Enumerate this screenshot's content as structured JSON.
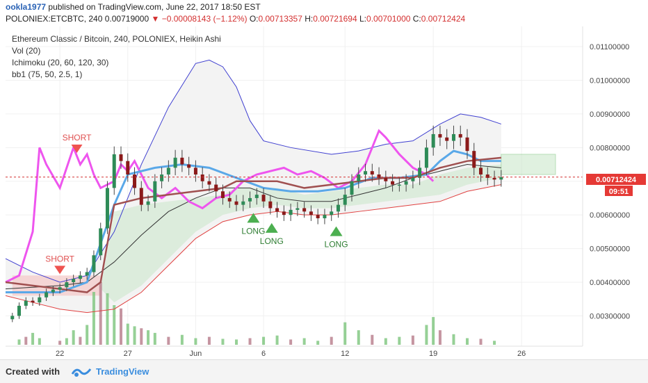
{
  "header": {
    "username": "ookla1977",
    "published_text": "published on TradingView.com, June 22, 2017 18:50 EST",
    "symbol": "POLONIEX:ETCBTC, 240",
    "last": "0.00719000",
    "change": "−0.00008143 (−1.12%)",
    "open_label": "O:",
    "open": "0.00713357",
    "high_label": "H:",
    "high": "0.00721694",
    "low_label": "L:",
    "low": "0.00701000",
    "close_label": "C:",
    "close": "0.00712424"
  },
  "legend": [
    "Ethereum Classic / Bitcoin, 240, POLONIEX, Heikin Ashi",
    "Vol (20)",
    "Ichimoku (20, 60, 120, 30)",
    "bb1 (75, 50, 2.5, 1)"
  ],
  "price_tag": {
    "value": "0.00712424",
    "countdown": "09:51"
  },
  "footer": {
    "created_with": "Created with",
    "brand": "TradingView"
  },
  "colors": {
    "up": "#2e8b57",
    "down": "#8b1a1a",
    "bb_upper": "#3f3fd0",
    "bb_lower": "#e04040",
    "magenta": "#ee55ee",
    "cyan": "#5aa8e8",
    "brown": "#a05050",
    "cloud_green": "#c8e6c8",
    "cloud_red": "#f3c8c8",
    "price_line": "#d32f2f",
    "volume_up": "#7cc47c",
    "volume_down": "#b77a8a"
  },
  "chart_data": {
    "type": "candlestick",
    "style": "Heikin Ashi",
    "x_tick_labels": [
      "22",
      "27",
      "Jun",
      "6",
      "12",
      "19",
      "26"
    ],
    "y_tick_labels": [
      "0.01100000",
      "0.01000000",
      "0.00900000",
      "0.00800000",
      "0.00700000",
      "0.00600000",
      "0.00500000",
      "0.00400000",
      "0.00300000"
    ],
    "y_ticks": [
      0.011,
      0.01,
      0.009,
      0.008,
      0.007,
      0.006,
      0.005,
      0.004,
      0.003
    ],
    "ylim": [
      0.0021,
      0.0116
    ],
    "last_price": 0.00712424,
    "annotations": [
      {
        "text": "SHORT",
        "type": "short",
        "price": 0.0078,
        "x_label_ref": "22",
        "offset": 2.5
      },
      {
        "text": "SHORT",
        "type": "short",
        "price": 0.0042,
        "x_label_ref": "22",
        "offset": 0.0
      },
      {
        "text": "LONG",
        "type": "long",
        "price": 0.0061,
        "x_label_ref": "6",
        "offset": -1.5
      },
      {
        "text": "LONG",
        "type": "long",
        "price": 0.0058,
        "x_label_ref": "6",
        "offset": 1.2
      },
      {
        "text": "LONG",
        "type": "long",
        "price": 0.0057,
        "x_label_ref": "12",
        "offset": -1.3
      }
    ],
    "price_path": [
      [
        0,
        0.0029
      ],
      [
        1,
        0.003
      ],
      [
        2,
        0.0033
      ],
      [
        3,
        0.00345
      ],
      [
        4,
        0.0034
      ],
      [
        5,
        0.00355
      ],
      [
        6,
        0.0037
      ],
      [
        7,
        0.00378
      ],
      [
        8,
        0.00385
      ],
      [
        9,
        0.004
      ],
      [
        10,
        0.0041
      ],
      [
        11,
        0.0042
      ],
      [
        12,
        0.0043
      ],
      [
        13,
        0.0048
      ],
      [
        14,
        0.0056
      ],
      [
        15,
        0.0068
      ],
      [
        16,
        0.0078
      ],
      [
        17,
        0.0076
      ],
      [
        18,
        0.0072
      ],
      [
        19,
        0.0068
      ],
      [
        20,
        0.0063
      ],
      [
        21,
        0.0064
      ],
      [
        22,
        0.007
      ],
      [
        23,
        0.0072
      ],
      [
        24,
        0.0074
      ],
      [
        25,
        0.0077
      ],
      [
        26,
        0.0075
      ],
      [
        27,
        0.0074
      ],
      [
        28,
        0.0072
      ],
      [
        29,
        0.007
      ],
      [
        30,
        0.0069
      ],
      [
        31,
        0.0067
      ],
      [
        32,
        0.0065
      ],
      [
        33,
        0.0064
      ],
      [
        34,
        0.0063
      ],
      [
        35,
        0.0064
      ],
      [
        36,
        0.0065
      ],
      [
        37,
        0.0066
      ],
      [
        38,
        0.0064
      ],
      [
        39,
        0.0062
      ],
      [
        40,
        0.0061
      ],
      [
        41,
        0.006
      ],
      [
        42,
        0.00615
      ],
      [
        43,
        0.0062
      ],
      [
        44,
        0.0061
      ],
      [
        45,
        0.006
      ],
      [
        46,
        0.0059
      ],
      [
        47,
        0.006
      ],
      [
        48,
        0.0061
      ],
      [
        49,
        0.0063
      ],
      [
        50,
        0.0066
      ],
      [
        51,
        0.007
      ],
      [
        52,
        0.0072
      ],
      [
        53,
        0.0073
      ],
      [
        54,
        0.0072
      ],
      [
        55,
        0.0071
      ],
      [
        56,
        0.007
      ],
      [
        57,
        0.0069
      ],
      [
        58,
        0.0069
      ],
      [
        59,
        0.007
      ],
      [
        60,
        0.0071
      ],
      [
        61,
        0.0074
      ],
      [
        62,
        0.008
      ],
      [
        63,
        0.0084
      ],
      [
        64,
        0.0083
      ],
      [
        65,
        0.0082
      ],
      [
        66,
        0.0084
      ],
      [
        67,
        0.0083
      ],
      [
        68,
        0.0079
      ],
      [
        69,
        0.0074
      ],
      [
        70,
        0.0072
      ],
      [
        71,
        0.0071
      ],
      [
        72,
        0.00705
      ],
      [
        73,
        0.00712
      ]
    ],
    "x_tick_positions": [
      8,
      18,
      28,
      38,
      50,
      63,
      76
    ],
    "series": [
      {
        "name": "bb upper",
        "values": [
          [
            0,
            0.0047
          ],
          [
            4,
            0.0043
          ],
          [
            8,
            0.004
          ],
          [
            12,
            0.0042
          ],
          [
            16,
            0.0055
          ],
          [
            20,
            0.0075
          ],
          [
            24,
            0.0092
          ],
          [
            28,
            0.0105
          ],
          [
            30,
            0.0106
          ],
          [
            32,
            0.0104
          ],
          [
            34,
            0.0098
          ],
          [
            36,
            0.0088
          ],
          [
            38,
            0.0082
          ],
          [
            42,
            0.008
          ],
          [
            48,
            0.0078
          ],
          [
            52,
            0.0079
          ],
          [
            56,
            0.0081
          ],
          [
            60,
            0.0082
          ],
          [
            64,
            0.0087
          ],
          [
            67,
            0.009
          ],
          [
            70,
            0.0089
          ],
          [
            73,
            0.0087
          ]
        ]
      },
      {
        "name": "bb lower",
        "values": [
          [
            0,
            0.0036
          ],
          [
            4,
            0.0034
          ],
          [
            8,
            0.0032
          ],
          [
            12,
            0.0031
          ],
          [
            16,
            0.0032
          ],
          [
            20,
            0.0037
          ],
          [
            24,
            0.0045
          ],
          [
            28,
            0.0053
          ],
          [
            32,
            0.0058
          ],
          [
            36,
            0.006
          ],
          [
            40,
            0.0061
          ],
          [
            44,
            0.006
          ],
          [
            48,
            0.006
          ],
          [
            52,
            0.0061
          ],
          [
            56,
            0.0062
          ],
          [
            60,
            0.0063
          ],
          [
            64,
            0.0064
          ],
          [
            68,
            0.0067
          ],
          [
            73,
            0.0069
          ]
        ]
      },
      {
        "name": "magenta",
        "values": [
          [
            0,
            0.004
          ],
          [
            2,
            0.0042
          ],
          [
            4,
            0.0055
          ],
          [
            5,
            0.008
          ],
          [
            6,
            0.0075
          ],
          [
            8,
            0.0068
          ],
          [
            10,
            0.008
          ],
          [
            11,
            0.0075
          ],
          [
            12,
            0.0078
          ],
          [
            13,
            0.0072
          ],
          [
            14,
            0.0068
          ],
          [
            16,
            0.007
          ],
          [
            17,
            0.0075
          ],
          [
            18,
            0.0073
          ],
          [
            19,
            0.0076
          ],
          [
            21,
            0.0068
          ],
          [
            23,
            0.0065
          ],
          [
            25,
            0.0068
          ],
          [
            27,
            0.0064
          ],
          [
            29,
            0.0062
          ],
          [
            31,
            0.0065
          ],
          [
            33,
            0.0066
          ],
          [
            35,
            0.007
          ],
          [
            37,
            0.0072
          ],
          [
            39,
            0.0073
          ],
          [
            41,
            0.0074
          ],
          [
            43,
            0.0072
          ],
          [
            45,
            0.0073
          ],
          [
            47,
            0.0071
          ],
          [
            49,
            0.0068
          ],
          [
            51,
            0.007
          ],
          [
            53,
            0.0075
          ],
          [
            55,
            0.0085
          ],
          [
            56,
            0.0083
          ],
          [
            58,
            0.0078
          ],
          [
            60,
            0.0074
          ],
          [
            62,
            0.0072
          ],
          [
            63,
            0.007
          ]
        ]
      },
      {
        "name": "cyan",
        "values": [
          [
            0,
            0.0037
          ],
          [
            8,
            0.0037
          ],
          [
            12,
            0.004
          ],
          [
            16,
            0.0063
          ],
          [
            18,
            0.0072
          ],
          [
            22,
            0.0074
          ],
          [
            26,
            0.0075
          ],
          [
            30,
            0.0074
          ],
          [
            34,
            0.0071
          ],
          [
            38,
            0.0068
          ],
          [
            42,
            0.0067
          ],
          [
            46,
            0.0067
          ],
          [
            50,
            0.0068
          ],
          [
            54,
            0.0071
          ],
          [
            58,
            0.0071
          ],
          [
            62,
            0.0072
          ],
          [
            64,
            0.0076
          ],
          [
            66,
            0.0079
          ],
          [
            68,
            0.0078
          ],
          [
            70,
            0.0076
          ],
          [
            73,
            0.0076
          ]
        ]
      },
      {
        "name": "brown",
        "values": [
          [
            0,
            0.004
          ],
          [
            8,
            0.0038
          ],
          [
            12,
            0.0037
          ],
          [
            14,
            0.004
          ],
          [
            16,
            0.0063
          ],
          [
            20,
            0.0065
          ],
          [
            24,
            0.0066
          ],
          [
            28,
            0.0067
          ],
          [
            32,
            0.0068
          ],
          [
            34,
            0.007
          ],
          [
            36,
            0.007
          ],
          [
            40,
            0.007
          ],
          [
            44,
            0.0068
          ],
          [
            48,
            0.0069
          ],
          [
            52,
            0.007
          ],
          [
            56,
            0.0071
          ],
          [
            60,
            0.0071
          ],
          [
            64,
            0.0074
          ],
          [
            68,
            0.0076
          ],
          [
            73,
            0.0077
          ]
        ]
      },
      {
        "name": "black",
        "values": [
          [
            0,
            0.0038
          ],
          [
            8,
            0.0039
          ],
          [
            12,
            0.004
          ],
          [
            16,
            0.0046
          ],
          [
            20,
            0.0054
          ],
          [
            24,
            0.0061
          ],
          [
            28,
            0.0065
          ],
          [
            32,
            0.0068
          ],
          [
            36,
            0.0068
          ],
          [
            40,
            0.0065
          ],
          [
            44,
            0.0064
          ],
          [
            48,
            0.0064
          ],
          [
            52,
            0.0066
          ],
          [
            56,
            0.0068
          ],
          [
            60,
            0.0071
          ],
          [
            64,
            0.0073
          ],
          [
            68,
            0.0075
          ],
          [
            73,
            0.0074
          ]
        ]
      }
    ],
    "volume": [
      [
        2,
        0.08
      ],
      [
        3,
        0.12
      ],
      [
        4,
        0.18
      ],
      [
        5,
        0.1
      ],
      [
        8,
        0.06
      ],
      [
        9,
        0.1
      ],
      [
        10,
        0.22
      ],
      [
        11,
        0.12
      ],
      [
        12,
        0.3
      ],
      [
        13,
        0.8
      ],
      [
        14,
        0.95
      ],
      [
        15,
        0.78
      ],
      [
        16,
        0.6
      ],
      [
        17,
        0.55
      ],
      [
        18,
        0.32
      ],
      [
        19,
        0.28
      ],
      [
        20,
        0.25
      ],
      [
        21,
        0.22
      ],
      [
        22,
        0.18
      ],
      [
        24,
        0.12
      ],
      [
        26,
        0.15
      ],
      [
        28,
        0.1
      ],
      [
        30,
        0.12
      ],
      [
        32,
        0.09
      ],
      [
        34,
        0.08
      ],
      [
        36,
        0.1
      ],
      [
        38,
        0.12
      ],
      [
        40,
        0.14
      ],
      [
        42,
        0.08
      ],
      [
        44,
        0.1
      ],
      [
        46,
        0.06
      ],
      [
        48,
        0.12
      ],
      [
        50,
        0.34
      ],
      [
        52,
        0.22
      ],
      [
        54,
        0.15
      ],
      [
        56,
        0.1
      ],
      [
        58,
        0.12
      ],
      [
        60,
        0.14
      ],
      [
        62,
        0.3
      ],
      [
        63,
        0.42
      ],
      [
        64,
        0.22
      ],
      [
        66,
        0.16
      ],
      [
        68,
        0.1
      ],
      [
        70,
        0.09
      ],
      [
        72,
        0.06
      ]
    ]
  }
}
